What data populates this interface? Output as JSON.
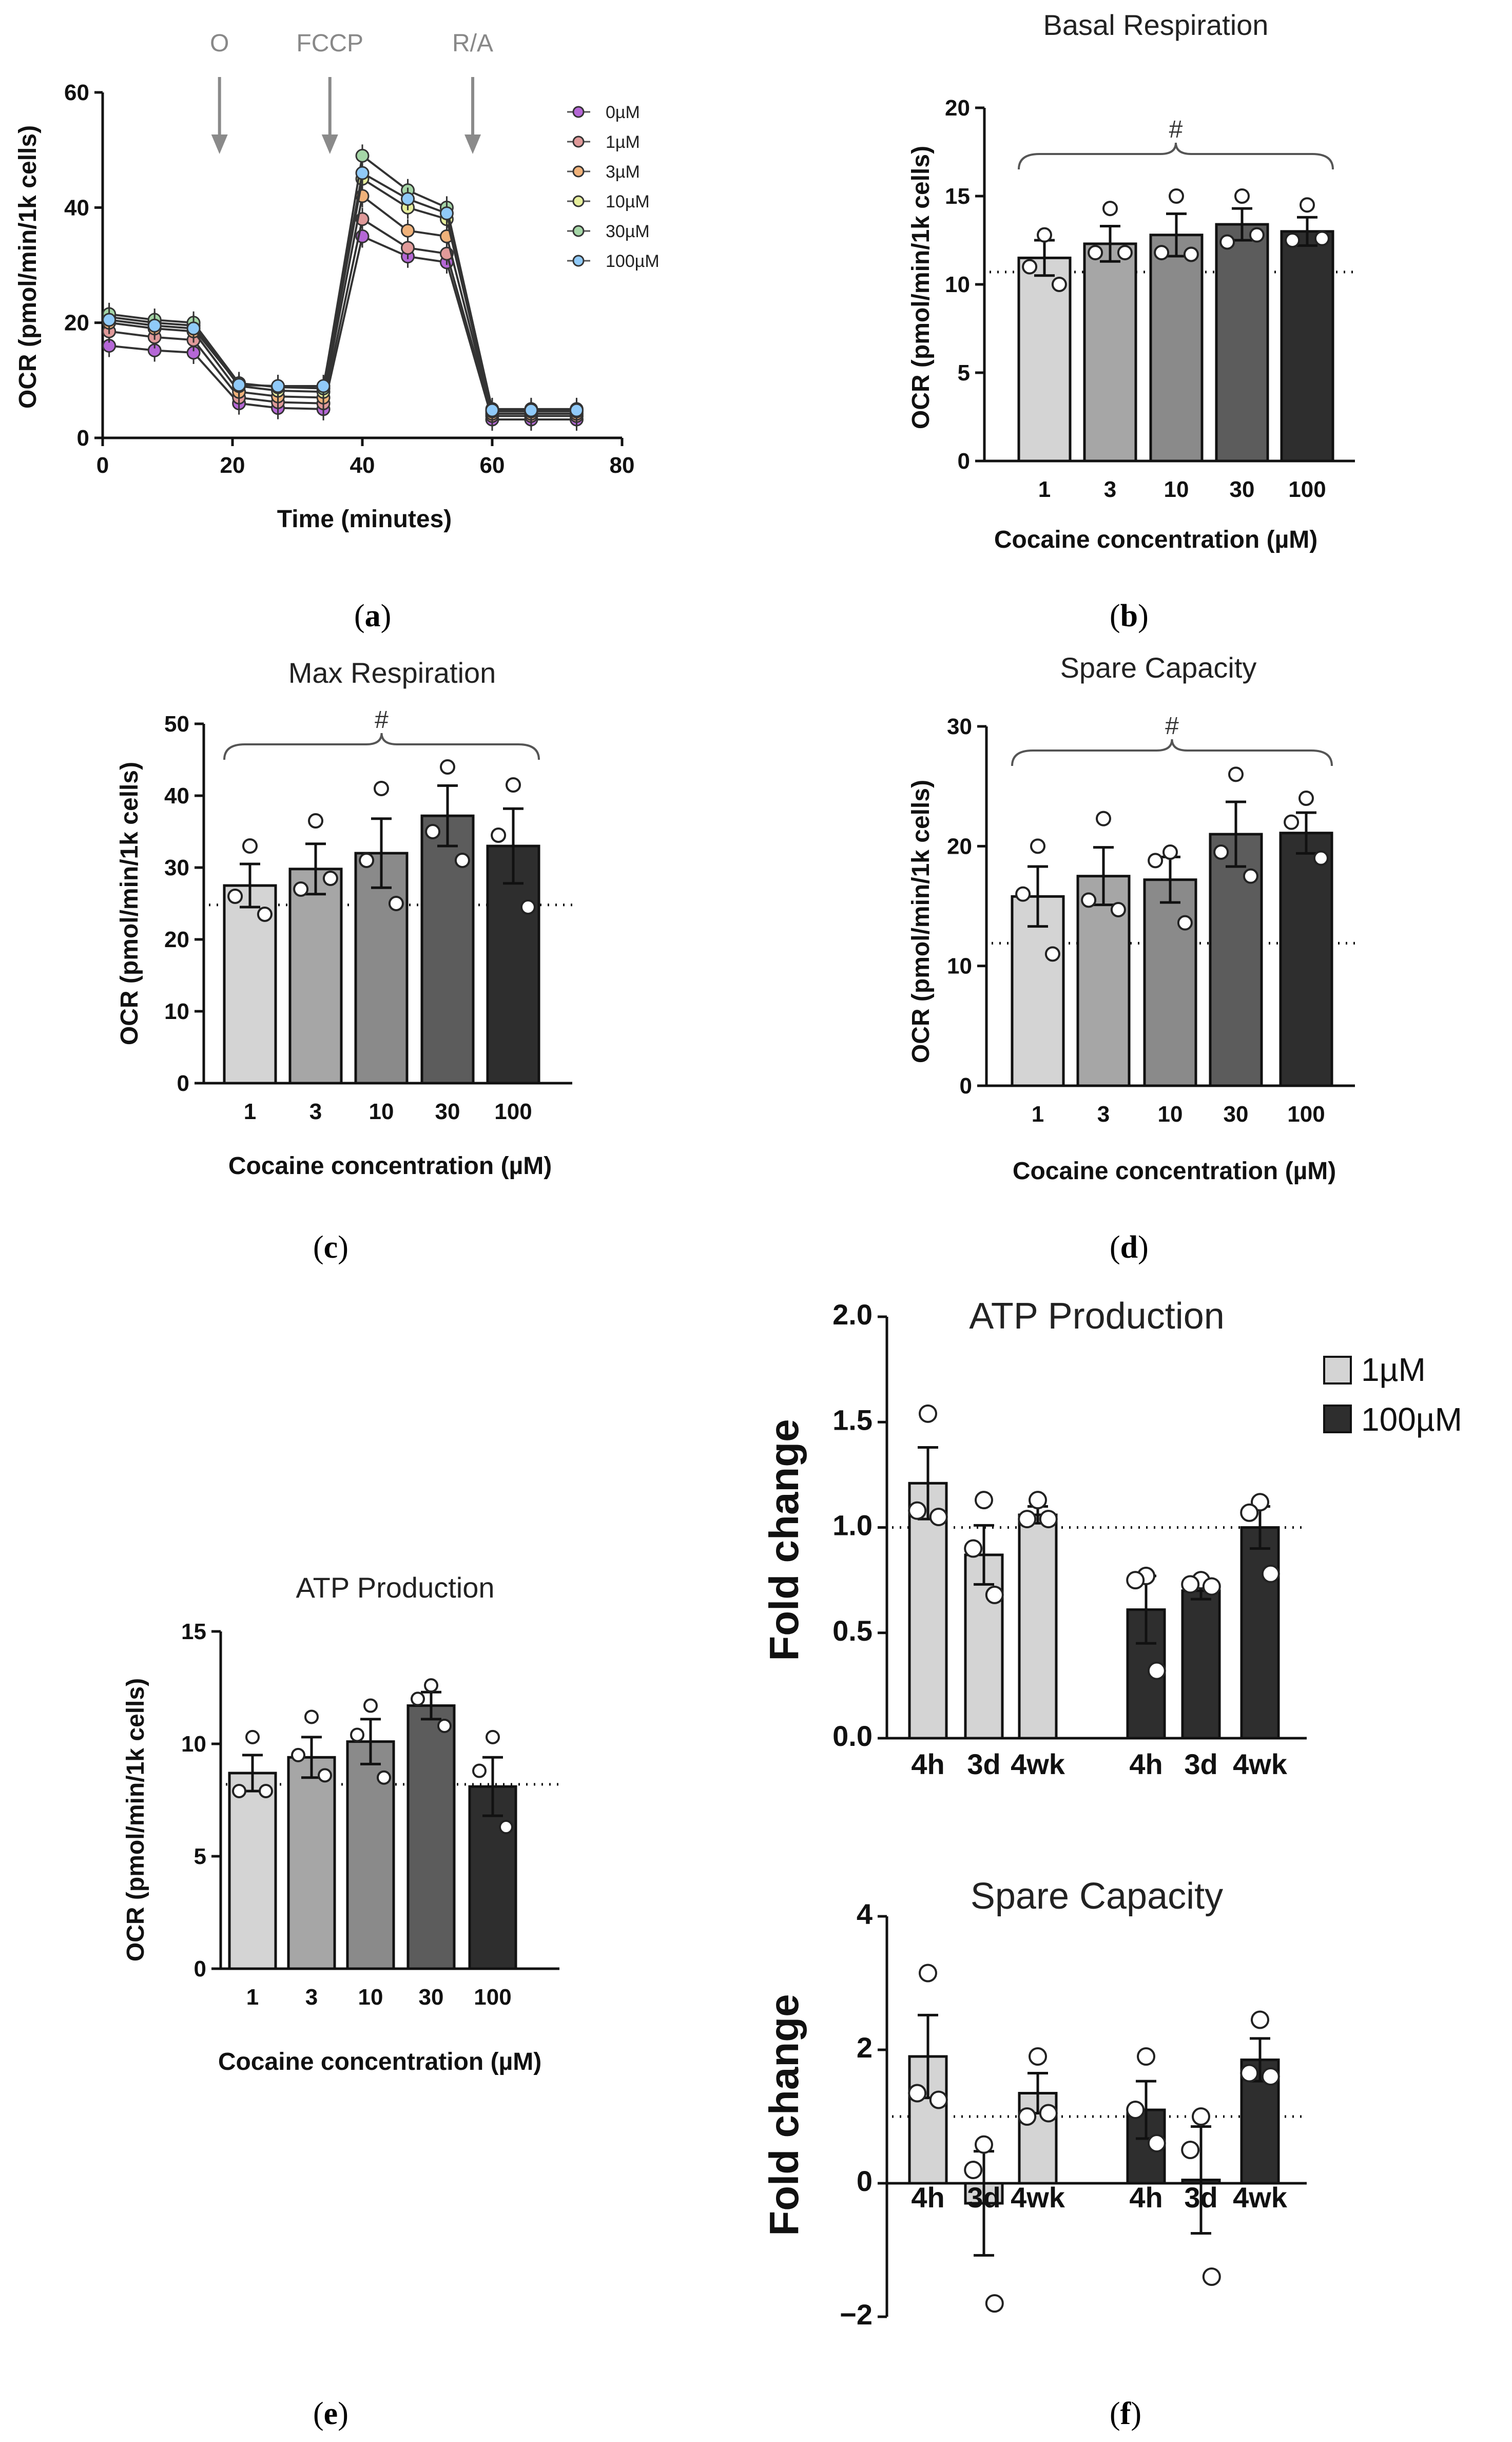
{
  "panel_labels": {
    "a": "a",
    "b": "b",
    "c": "c",
    "d": "d",
    "e": "e",
    "f": "f"
  },
  "colors": {
    "c0": "#b567d6",
    "c1": "#e09a9a",
    "c3": "#f0b27a",
    "c10": "#e6ee9c",
    "c30": "#a5d6a7",
    "c100": "#90caf9",
    "bar1": "#d4d4d4",
    "bar3": "#a6a6a6",
    "bar10": "#8a8a8a",
    "bar30": "#5c5c5c",
    "bar100": "#2e2e2e"
  },
  "chart_data": [
    {
      "id": "a",
      "type": "line",
      "title": "",
      "xlabel": "Time (minutes)",
      "ylabel": "OCR (pmol/min/1k cells)",
      "xlim": [
        0,
        80
      ],
      "ylim": [
        0,
        60
      ],
      "xticks": [
        "0",
        "20",
        "40",
        "60",
        "80"
      ],
      "yticks": [
        "0",
        "20",
        "40",
        "60"
      ],
      "x": [
        1,
        8,
        14,
        21,
        27,
        34,
        40,
        47,
        53,
        60,
        66,
        73
      ],
      "annotations": [
        "O",
        "FCCP",
        "R/A"
      ],
      "annotation_x": [
        18,
        35,
        57
      ],
      "series": [
        {
          "name": "0µM",
          "color": "#b567d6",
          "values": [
            16,
            15.2,
            14.8,
            6,
            5.2,
            5,
            35,
            31.5,
            30.5,
            3.2,
            3.2,
            3.2
          ]
        },
        {
          "name": "1µM",
          "color": "#e09a9a",
          "values": [
            18.5,
            17.5,
            17,
            7,
            6.2,
            6,
            38,
            33,
            32,
            3.8,
            3.8,
            3.8
          ]
        },
        {
          "name": "3µM",
          "color": "#f0b27a",
          "values": [
            20,
            19,
            18.5,
            8,
            7.2,
            7,
            42,
            36,
            35,
            4.2,
            4.2,
            4.2
          ]
        },
        {
          "name": "10µM",
          "color": "#e6ee9c",
          "values": [
            21,
            20,
            19.5,
            9,
            8.2,
            8,
            45,
            40,
            38,
            4.6,
            4.6,
            4.6
          ]
        },
        {
          "name": "30µM",
          "color": "#a5d6a7",
          "values": [
            21.5,
            20.5,
            20,
            9.5,
            8.8,
            8.6,
            49,
            43,
            40,
            5,
            5,
            5
          ]
        },
        {
          "name": "100µM",
          "color": "#90caf9",
          "values": [
            20.5,
            19.5,
            19,
            9.2,
            9,
            9,
            46,
            41.5,
            39,
            4.8,
            4.8,
            4.8
          ]
        }
      ]
    },
    {
      "id": "b",
      "type": "bar",
      "title": "Basal Respiration",
      "xlabel": "Cocaine concentration (µM)",
      "ylabel": "OCR (pmol/min/1k cells)",
      "categories": [
        "1",
        "3",
        "10",
        "30",
        "100"
      ],
      "values": [
        11.5,
        12.3,
        12.8,
        13.4,
        13
      ],
      "errors": [
        1,
        1,
        1.2,
        0.9,
        0.8
      ],
      "points": [
        [
          12.8,
          11,
          10
        ],
        [
          14.3,
          11.8,
          11.8
        ],
        [
          15,
          11.8,
          11.7
        ],
        [
          15,
          12.4,
          12.8
        ],
        [
          14.5,
          12.5,
          12.6
        ]
      ],
      "ylim": [
        0,
        20
      ],
      "yticks": [
        "0",
        "5",
        "10",
        "15",
        "20"
      ],
      "reference_line": 10.7,
      "significance": "#"
    },
    {
      "id": "c",
      "type": "bar",
      "title": "Max Respiration",
      "xlabel": "Cocaine concentration (µM)",
      "ylabel": "OCR (pmol/min/1k cells)",
      "categories": [
        "1",
        "3",
        "10",
        "30",
        "100"
      ],
      "values": [
        27.5,
        29.8,
        32,
        37.2,
        33
      ],
      "errors": [
        3,
        3.5,
        4.8,
        4.2,
        5.2
      ],
      "points": [
        [
          33,
          26,
          23.5
        ],
        [
          36.5,
          27,
          28.5
        ],
        [
          41,
          31,
          25
        ],
        [
          44,
          35,
          31
        ],
        [
          41.5,
          34.5,
          24.5
        ]
      ],
      "ylim": [
        0,
        50
      ],
      "yticks": [
        "0",
        "10",
        "20",
        "30",
        "40",
        "50"
      ],
      "reference_line": 24.8,
      "significance": "#"
    },
    {
      "id": "d",
      "type": "bar",
      "title": "Spare Capacity",
      "xlabel": "Cocaine concentration (µM)",
      "ylabel": "OCR (pmol/min/1k cells)",
      "categories": [
        "1",
        "3",
        "10",
        "30",
        "100"
      ],
      "values": [
        15.8,
        17.5,
        17.2,
        21,
        21.1
      ],
      "errors": [
        2.5,
        2.4,
        1.9,
        2.7,
        1.7
      ],
      "points": [
        [
          20,
          16,
          11
        ],
        [
          22.3,
          15.5,
          14.7
        ],
        [
          19.5,
          18.8,
          13.6
        ],
        [
          26,
          19.5,
          17.5
        ],
        [
          24,
          22,
          19
        ]
      ],
      "ylim": [
        0,
        30
      ],
      "yticks": [
        "0",
        "10",
        "20",
        "30"
      ],
      "reference_line": 11.9,
      "significance": "#"
    },
    {
      "id": "e",
      "type": "bar",
      "title": "ATP Production",
      "xlabel": "Cocaine concentration (µM)",
      "ylabel": "OCR (pmol/min/1k cells)",
      "categories": [
        "1",
        "3",
        "10",
        "30",
        "100"
      ],
      "values": [
        8.7,
        9.4,
        10.1,
        11.7,
        8.1
      ],
      "errors": [
        0.8,
        0.9,
        1,
        0.6,
        1.3
      ],
      "points": [
        [
          10.3,
          7.9,
          7.9
        ],
        [
          11.2,
          9.5,
          8.6
        ],
        [
          11.7,
          10.4,
          8.5
        ],
        [
          12.6,
          12,
          10.8
        ],
        [
          10.3,
          8.8,
          6.3
        ]
      ],
      "ylim": [
        0,
        15
      ],
      "yticks": [
        "0",
        "5",
        "10",
        "15"
      ],
      "reference_line": 8.2,
      "significance": ""
    },
    {
      "id": "f1",
      "type": "bar",
      "title": "ATP Production",
      "xlabel": "",
      "ylabel": "Fold change",
      "categories": [
        "4h",
        "3d",
        "4wk",
        "4h",
        "3d",
        "4wk"
      ],
      "groups": [
        "1µM",
        "1µM",
        "1µM",
        "100µM",
        "100µM",
        "100µM"
      ],
      "values": [
        1.21,
        0.87,
        1.06,
        0.61,
        0.7,
        1
      ],
      "errors": [
        0.17,
        0.14,
        0.04,
        0.16,
        0.04,
        0.1
      ],
      "points": [
        [
          1.54,
          1.08,
          1.05
        ],
        [
          1.13,
          0.9,
          0.68
        ],
        [
          1.13,
          1.04,
          1.04
        ],
        [
          0.77,
          0.75,
          0.32
        ],
        [
          0.75,
          0.73,
          0.72
        ],
        [
          1.12,
          1.07,
          0.78
        ]
      ],
      "ylim": [
        0,
        2
      ],
      "yticks": [
        "0.0",
        "0.5",
        "1.0",
        "1.5",
        "2.0"
      ],
      "reference_line": 1.0,
      "legend": [
        "1µM",
        "100µM"
      ]
    },
    {
      "id": "f2",
      "type": "bar",
      "title": "Spare Capacity",
      "xlabel": "",
      "ylabel": "Fold change",
      "categories": [
        "4h",
        "3d",
        "4wk",
        "4h",
        "3d",
        "4wk"
      ],
      "groups": [
        "1µM",
        "1µM",
        "1µM",
        "100µM",
        "100µM",
        "100µM"
      ],
      "values": [
        1.9,
        -0.3,
        1.35,
        1.1,
        0.05,
        1.85
      ],
      "errors": [
        0.62,
        0.78,
        0.3,
        0.43,
        0.8,
        0.32
      ],
      "points": [
        [
          3.15,
          1.35,
          1.25
        ],
        [
          0.58,
          0.2,
          -1.8
        ],
        [
          1.9,
          1.0,
          1.05
        ],
        [
          1.9,
          1.1,
          0.6
        ],
        [
          1.0,
          0.5,
          -1.4
        ],
        [
          2.45,
          1.65,
          1.6
        ]
      ],
      "ylim": [
        -2,
        4
      ],
      "yticks": [
        "−2",
        "0",
        "2",
        "4"
      ],
      "reference_line": 1.0
    }
  ]
}
